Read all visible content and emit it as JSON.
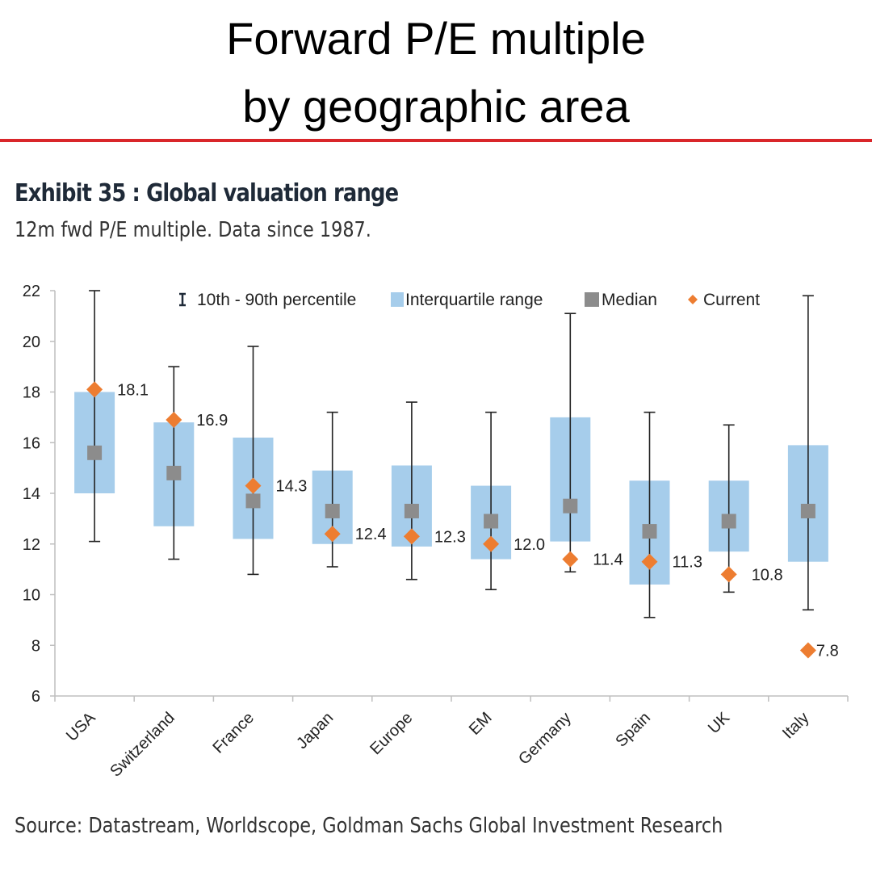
{
  "header": {
    "line1": "Forward P/E multiple",
    "line2": "by geographic area"
  },
  "exhibit": {
    "title": "Exhibit 35 : Global valuation range",
    "subtitle": "12m fwd P/E multiple. Data since 1987."
  },
  "source": "Source: Datastream, Worldscope, Goldman Sachs Global Investment Research",
  "colors": {
    "accent_rule": "#d9262a",
    "iqr": "#a6cdeb",
    "median": "#8c8c8c",
    "current": "#ed7d31",
    "whisker": "#222222"
  },
  "chart_data": {
    "type": "box",
    "categories": [
      "USA",
      "Switzerland",
      "France",
      "Japan",
      "Europe",
      "EM",
      "Germany",
      "Spain",
      "UK",
      "Italy"
    ],
    "p10": [
      12.1,
      11.4,
      10.8,
      11.1,
      10.6,
      10.2,
      10.9,
      9.1,
      10.1,
      9.4
    ],
    "p90": [
      22.0,
      19.0,
      19.8,
      17.2,
      17.6,
      17.2,
      21.1,
      17.2,
      16.7,
      21.8
    ],
    "q1": [
      14.0,
      12.7,
      12.2,
      12.0,
      11.9,
      11.4,
      12.1,
      10.4,
      11.7,
      11.3
    ],
    "q3": [
      18.0,
      16.8,
      16.2,
      14.9,
      15.1,
      14.3,
      17.0,
      14.5,
      14.5,
      15.9
    ],
    "median": [
      15.6,
      14.8,
      13.7,
      13.3,
      13.3,
      12.9,
      13.5,
      12.5,
      12.9,
      13.3
    ],
    "current": [
      18.1,
      16.9,
      14.3,
      12.4,
      12.3,
      12.0,
      11.4,
      11.3,
      10.8,
      7.8
    ],
    "current_labels": [
      "18.1",
      "16.9",
      "14.3",
      "12.4",
      "12.3",
      "12.0",
      "11.4",
      "11.3",
      "10.8",
      "7.8"
    ],
    "ylim": [
      6,
      22
    ],
    "yticks": [
      "6",
      "8",
      "10",
      "12",
      "14",
      "16",
      "18",
      "20",
      "22"
    ],
    "grid": false,
    "legend": [
      {
        "key": "whisker",
        "label": "10th - 90th percentile"
      },
      {
        "key": "iqr",
        "label": "Interquartile range"
      },
      {
        "key": "median",
        "label": "Median"
      },
      {
        "key": "current",
        "label": "Current"
      }
    ],
    "legend_position": "top"
  }
}
